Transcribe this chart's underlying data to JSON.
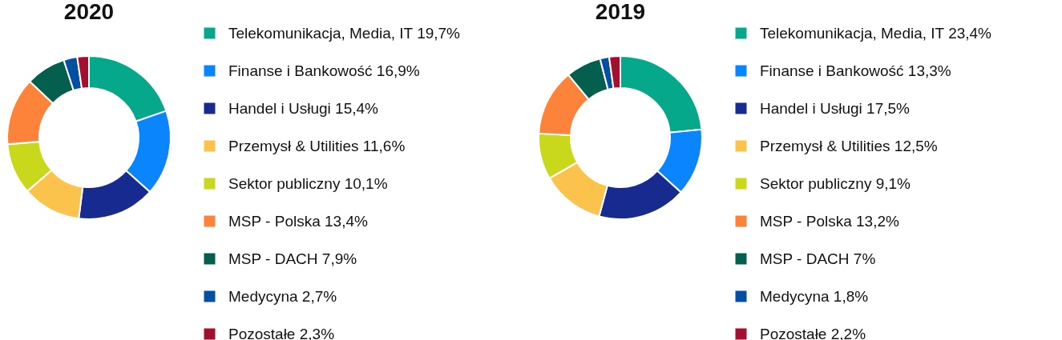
{
  "chart_data": [
    {
      "type": "donut",
      "title": "2020",
      "legend": "right",
      "categories": [
        "Telekomunikacja, Media, IT",
        "Finanse i Bankowość",
        "Handel i Usługi",
        "Przemysł & Utilities",
        "Sektor publiczny",
        "MSP - Polska",
        "MSP - DACH",
        "Medycyna",
        "Pozostałe"
      ],
      "values": [
        19.7,
        16.9,
        15.4,
        11.6,
        10.1,
        13.4,
        7.9,
        2.7,
        2.3
      ],
      "value_labels": [
        "19,7%",
        "16,9%",
        "15,4%",
        "11,6%",
        "10,1%",
        "13,4%",
        "7,9%",
        "2,7%",
        "2,3%"
      ],
      "colors": [
        "#06a88b",
        "#0a85fb",
        "#162a8f",
        "#fcc34c",
        "#c9d81b",
        "#fd833a",
        "#045f4f",
        "#0350a3",
        "#a50f2f"
      ]
    },
    {
      "type": "donut",
      "title": "2019",
      "legend": "right",
      "categories": [
        "Telekomunikacja, Media, IT",
        "Finanse i Bankowość",
        "Handel i Usługi",
        "Przemysł & Utilities",
        "Sektor publiczny",
        "MSP - Polska",
        "MSP - DACH",
        "Medycyna",
        "Pozostałe"
      ],
      "values": [
        23.4,
        13.3,
        17.5,
        12.5,
        9.1,
        13.2,
        7,
        1.8,
        2.2
      ],
      "value_labels": [
        "23,4%",
        "13,3%",
        "17,5%",
        "12,5%",
        "9,1%",
        "13,2%",
        "7%",
        "1,8%",
        "2,2%"
      ],
      "colors": [
        "#06a88b",
        "#0a85fb",
        "#162a8f",
        "#fcc34c",
        "#c9d81b",
        "#fd833a",
        "#045f4f",
        "#0350a3",
        "#a50f2f"
      ]
    }
  ]
}
